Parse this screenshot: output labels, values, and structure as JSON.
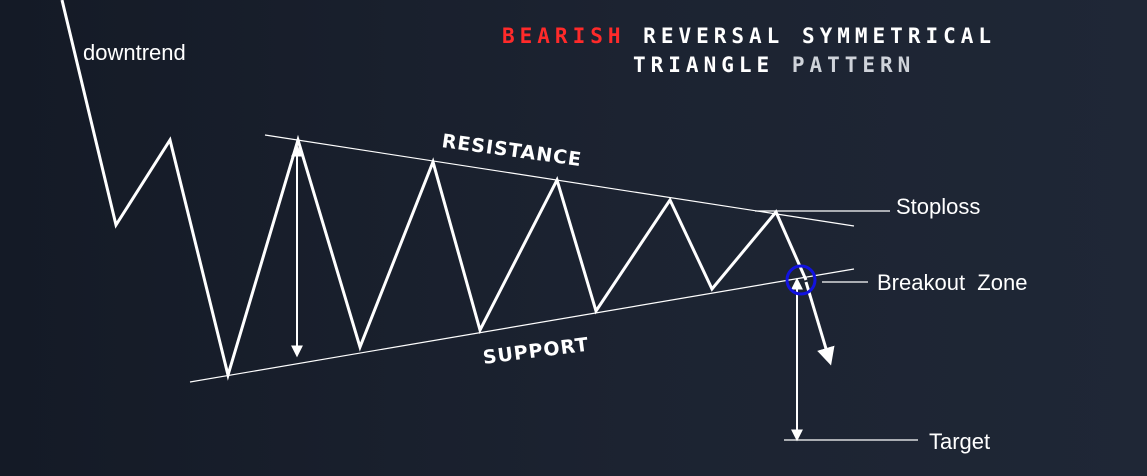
{
  "title": {
    "line1_word1": "BEARISH",
    "line1_rest": "REVERSAL SYMMETRICAL",
    "line2_word1": "TRIANGLE",
    "line2_word2": "PATTERN"
  },
  "labels": {
    "downtrend": "downtrend",
    "resistance": "RESISTANCE",
    "support": "SUPPORT",
    "stoploss": "Stoploss",
    "breakout_zone": "Breakout  Zone",
    "target": "Target"
  },
  "colors": {
    "background": "#1c2331",
    "line": "#ffffff",
    "title_accent": "#ff2a2a",
    "breakout_circle": "#1212e0"
  }
}
